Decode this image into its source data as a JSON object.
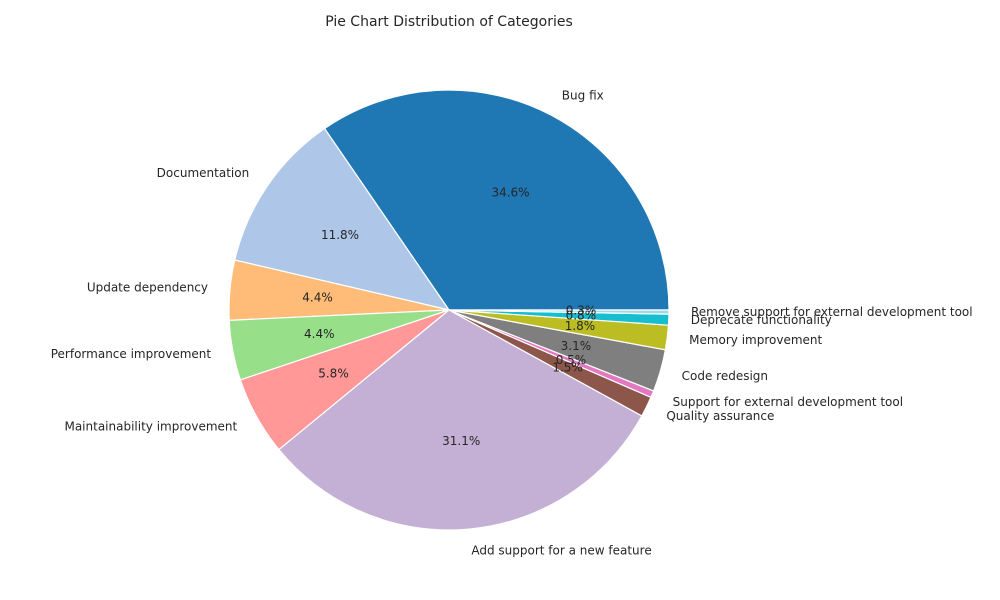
{
  "chart_data": {
    "type": "pie",
    "title": "Pie Chart Distribution of Categories",
    "start_angle_deg": 0,
    "direction": "counterclockwise",
    "edge_color": "#ffffff",
    "slices": [
      {
        "label": "Bug fix",
        "value": 34.6,
        "pct_text": "34.6%",
        "color": "#1f77b4"
      },
      {
        "label": "Documentation",
        "value": 11.8,
        "pct_text": "11.8%",
        "color": "#aec7e8"
      },
      {
        "label": "Update dependency",
        "value": 4.4,
        "pct_text": "4.4%",
        "color": "#ffbb78"
      },
      {
        "label": "Performance improvement",
        "value": 4.4,
        "pct_text": "4.4%",
        "color": "#98df8a"
      },
      {
        "label": "Maintainability improvement",
        "value": 5.8,
        "pct_text": "5.8%",
        "color": "#ff9896"
      },
      {
        "label": "Add support for a new feature",
        "value": 31.1,
        "pct_text": "31.1%",
        "color": "#c5b0d5"
      },
      {
        "label": "Quality assurance",
        "value": 1.5,
        "pct_text": "1.5%",
        "color": "#8c564b"
      },
      {
        "label": "Support for external development tool",
        "value": 0.5,
        "pct_text": "0.5%",
        "color": "#e377c2"
      },
      {
        "label": "Code redesign",
        "value": 3.1,
        "pct_text": "3.1%",
        "color": "#7f7f7f"
      },
      {
        "label": "Memory improvement",
        "value": 1.8,
        "pct_text": "1.8%",
        "color": "#bcbd22"
      },
      {
        "label": "Deprecate functionality",
        "value": 0.8,
        "pct_text": "0.8%",
        "color": "#17becf"
      },
      {
        "label": "Remove support for external development tool",
        "value": 0.3,
        "pct_text": "0.3%",
        "color": "#9edae5"
      }
    ]
  }
}
